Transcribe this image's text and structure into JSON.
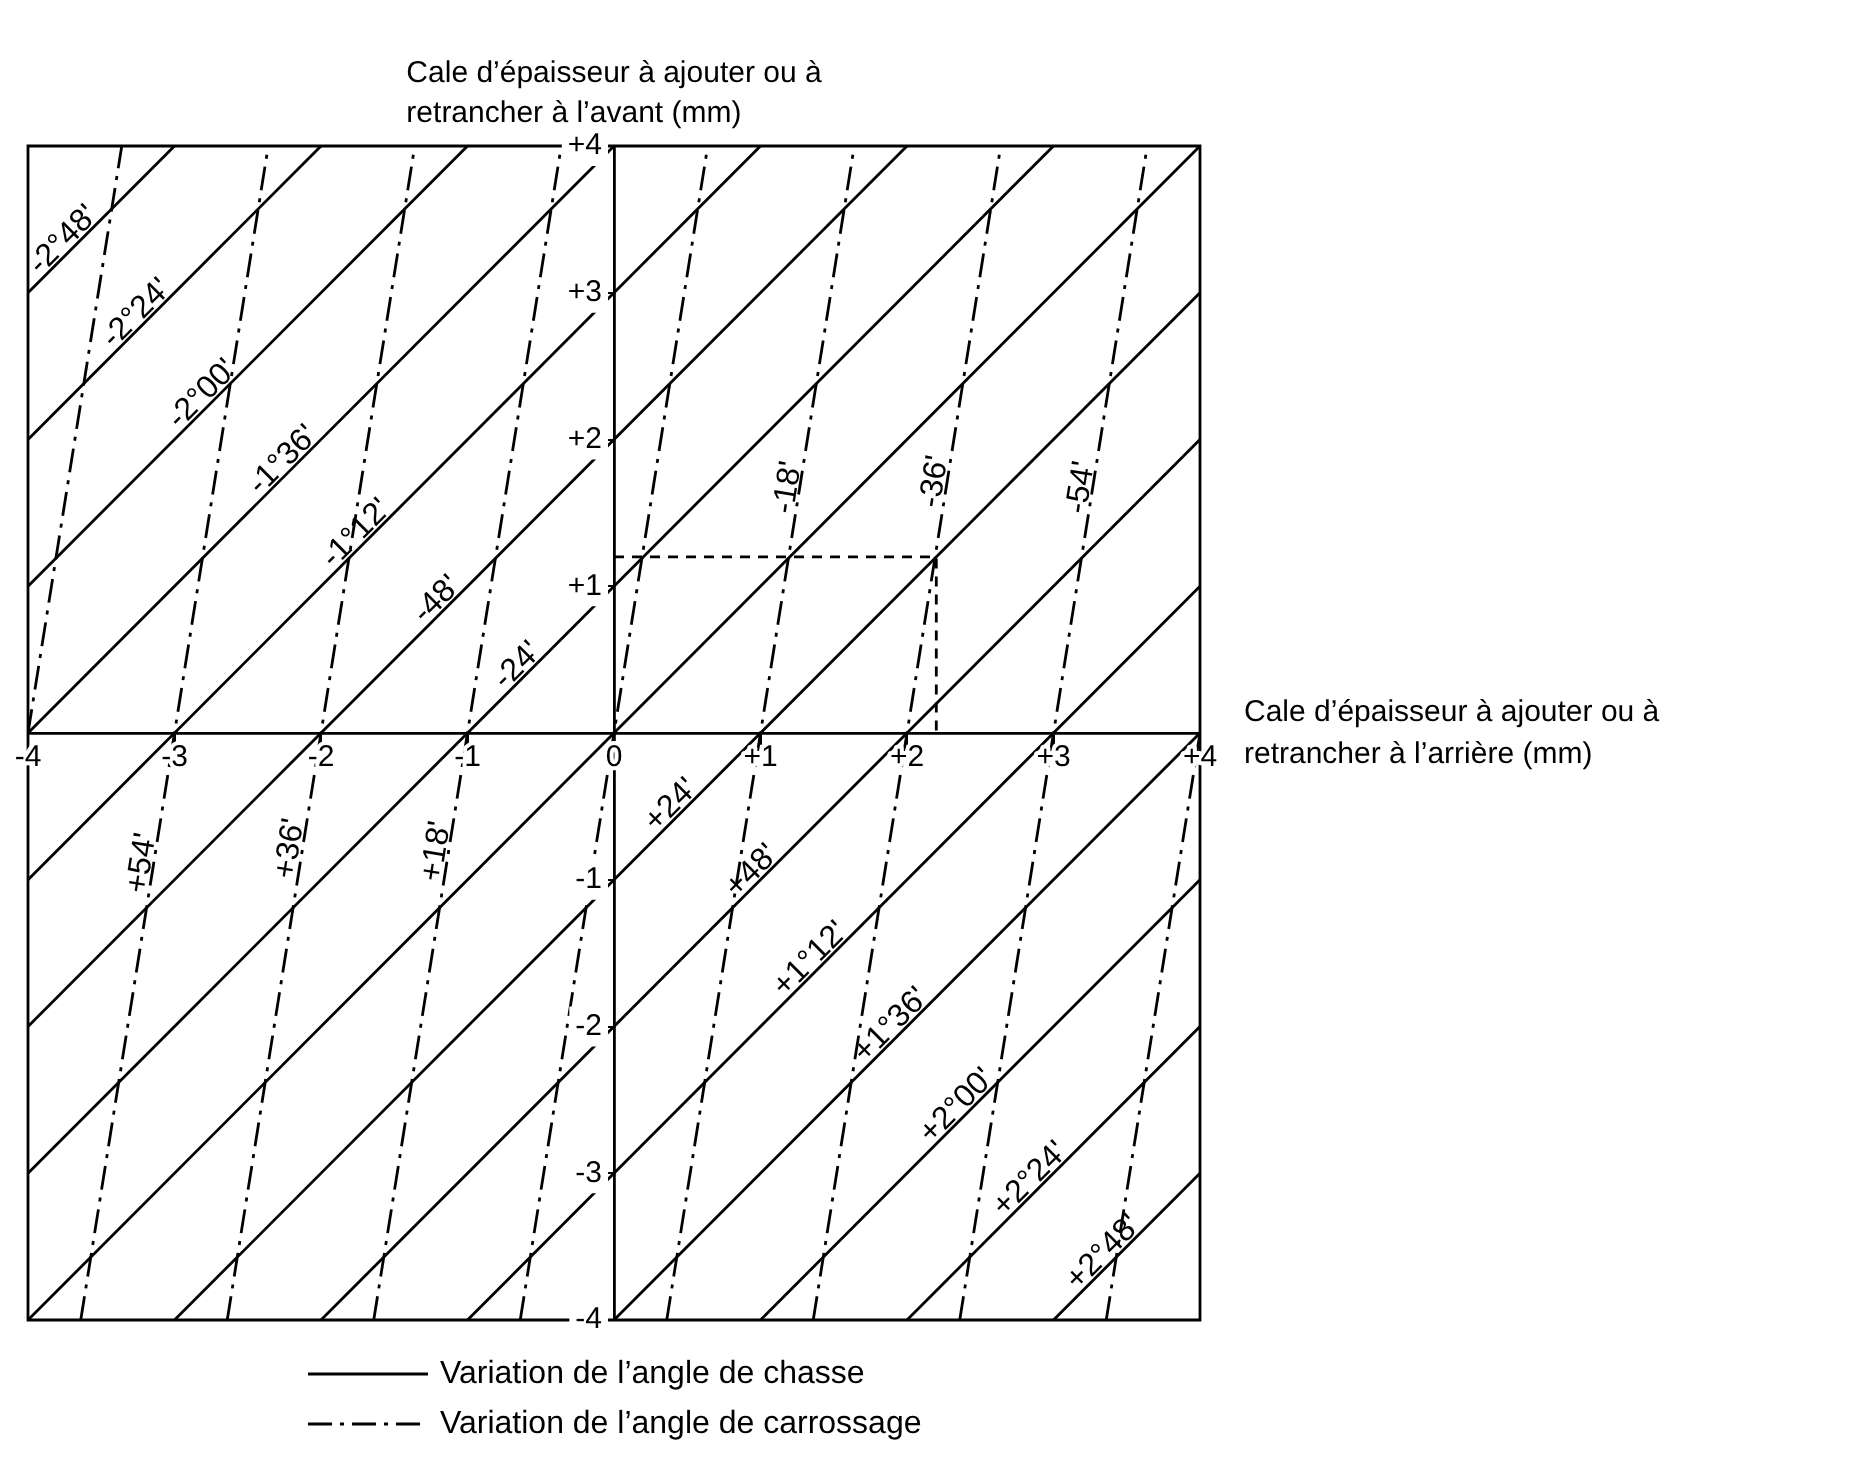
{
  "chart_data": {
    "type": "line",
    "xlabel": "Cale d’épaisseur à ajouter ou à retrancher à l’arrière (mm)",
    "ylabel": "Cale d’épaisseur à ajouter ou à retrancher à l’avant (mm)",
    "xlim": [
      -4,
      4
    ],
    "ylim": [
      -4,
      4
    ],
    "xticks": [
      {
        "value": -4,
        "label": "-4"
      },
      {
        "value": -3,
        "label": "-3"
      },
      {
        "value": -2,
        "label": "-2"
      },
      {
        "value": -1,
        "label": "-1"
      },
      0,
      {
        "value": 1,
        "label": "+1"
      },
      {
        "value": 2,
        "label": "+2"
      },
      {
        "value": 3,
        "label": "+3"
      },
      {
        "value": 4,
        "label": "+4"
      }
    ],
    "yticks": [
      {
        "value": -4,
        "label": "-4"
      },
      {
        "value": -3,
        "label": "-3"
      },
      {
        "value": -2,
        "label": "-2"
      },
      {
        "value": -1,
        "label": "-1"
      },
      {
        "value": 0,
        "label": null
      },
      {
        "value": 1,
        "label": "+1"
      },
      {
        "value": 2,
        "label": "+2"
      },
      {
        "value": 3,
        "label": "+3"
      },
      {
        "value": 4,
        "label": "+4"
      }
    ],
    "grid": false,
    "legend": "bottom",
    "marker": "none",
    "series": [
      {
        "name": "Variation de l’angle de chasse",
        "color": "#000000",
        "line_style": "solid",
        "x": [
          -4,
          -3
        ],
        "values": [
          3,
          4
        ]
      },
      {
        "color": "#000000",
        "line_style": "solid",
        "x": [
          -4,
          -2
        ],
        "values": [
          2,
          4
        ]
      },
      {
        "color": "#000000",
        "line_style": "solid",
        "x": [
          -4,
          -1
        ],
        "values": [
          1,
          4
        ]
      },
      {
        "color": "#000000",
        "line_style": "solid",
        "x": [
          -4,
          0
        ],
        "values": [
          0,
          4
        ]
      },
      {
        "color": "#000000",
        "line_style": "solid",
        "x": [
          -4,
          1
        ],
        "values": [
          -1,
          4
        ]
      },
      {
        "color": "#000000",
        "line_style": "solid",
        "x": [
          -4,
          2
        ],
        "values": [
          -2,
          4
        ]
      },
      {
        "color": "#000000",
        "line_style": "solid",
        "x": [
          -4,
          3
        ],
        "values": [
          -3,
          4
        ]
      },
      {
        "color": "#000000",
        "line_style": "solid",
        "x": [
          -4,
          4
        ],
        "values": [
          -4,
          4
        ]
      },
      {
        "color": "#000000",
        "line_style": "solid",
        "x": [
          -3,
          4
        ],
        "values": [
          -4,
          3
        ]
      },
      {
        "color": "#000000",
        "line_style": "solid",
        "x": [
          -2,
          4
        ],
        "values": [
          -4,
          2
        ]
      },
      {
        "color": "#000000",
        "line_style": "solid",
        "x": [
          -1,
          4
        ],
        "values": [
          -4,
          1
        ]
      },
      {
        "color": "#000000",
        "line_style": "solid",
        "x": [
          0,
          4
        ],
        "values": [
          -4,
          0
        ]
      },
      {
        "color": "#000000",
        "line_style": "solid",
        "x": [
          1,
          4
        ],
        "values": [
          -4,
          -1
        ]
      },
      {
        "color": "#000000",
        "line_style": "solid",
        "x": [
          2,
          4
        ],
        "values": [
          -4,
          -2
        ]
      },
      {
        "color": "#000000",
        "line_style": "solid",
        "x": [
          3,
          4
        ],
        "values": [
          -4,
          -3
        ]
      },
      {
        "name": "Variation de l’angle de carrossage",
        "color": "#000000",
        "line_style": "dashed",
        "x": [
          -4,
          -3.36
        ],
        "values": [
          0,
          4
        ]
      },
      {
        "color": "#000000",
        "line_style": "dashed",
        "x": [
          -3.64,
          -2.36
        ],
        "values": [
          -4,
          4
        ]
      },
      {
        "color": "#000000",
        "line_style": "dashed",
        "x": [
          -2.64,
          -1.36
        ],
        "values": [
          -4,
          4
        ]
      },
      {
        "color": "#000000",
        "line_style": "dashed",
        "x": [
          -1.64,
          -0.36
        ],
        "values": [
          -4,
          4
        ]
      },
      {
        "color": "#000000",
        "line_style": "dashed",
        "x": [
          -0.64,
          0.64
        ],
        "values": [
          -4,
          4
        ]
      },
      {
        "color": "#000000",
        "line_style": "dashed",
        "x": [
          0.36,
          1.64
        ],
        "values": [
          -4,
          4
        ]
      },
      {
        "color": "#000000",
        "line_style": "dashed",
        "x": [
          1.36,
          2.64
        ],
        "values": [
          -4,
          4
        ]
      },
      {
        "color": "#000000",
        "line_style": "dashed",
        "x": [
          2.36,
          3.64
        ],
        "values": [
          -4,
          4
        ]
      },
      {
        "color": "#000000",
        "line_style": "dashed",
        "x": [
          3.36,
          4
        ],
        "values": [
          -4,
          0
        ]
      },
      {
        "color": "#000000",
        "line_style": "dotted",
        "x": [
          0,
          2.2,
          2.2
        ],
        "values": [
          1.2,
          1.2,
          0
        ]
      }
    ],
    "annotations": [
      {
        "text": "-2°48'",
        "x": -3.7,
        "y": 3.3
      },
      {
        "text": "-2°24'",
        "x": -3.2,
        "y": 2.8
      },
      {
        "text": "-2°00'",
        "x": -2.75,
        "y": 2.25
      },
      {
        "text": "-1°36'",
        "x": -2.2,
        "y": 1.8
      },
      {
        "text": "-1°12'",
        "x": -1.7,
        "y": 1.3
      },
      {
        "text": "-48'",
        "x": -1.15,
        "y": 0.85
      },
      {
        "text": "-24'",
        "x": -0.6,
        "y": 0.4
      },
      {
        "text": "+24'",
        "x": 0.45,
        "y": -0.55
      },
      {
        "text": "+48'",
        "x": 1.0,
        "y": -1.0
      },
      {
        "text": "+1°12'",
        "x": 1.4,
        "y": -1.6
      },
      {
        "text": "+1°36'",
        "x": 1.95,
        "y": -2.05
      },
      {
        "text": "+2°00'",
        "x": 2.4,
        "y": -2.6
      },
      {
        "text": "+2°24'",
        "x": 2.9,
        "y": -3.1
      },
      {
        "text": "+2°48'",
        "x": 3.4,
        "y": -3.6
      },
      {
        "text": "-18'",
        "x": 1.27,
        "y": 1.66
      },
      {
        "text": "-36'",
        "x": 2.27,
        "y": 1.7
      },
      {
        "text": "-54'",
        "x": 3.27,
        "y": 1.66
      },
      {
        "text": "+18'",
        "x": -1.13,
        "y": -0.82
      },
      {
        "text": "+36'",
        "x": -2.13,
        "y": -0.8
      },
      {
        "text": "+54'",
        "x": -3.14,
        "y": -0.9
      }
    ]
  }
}
